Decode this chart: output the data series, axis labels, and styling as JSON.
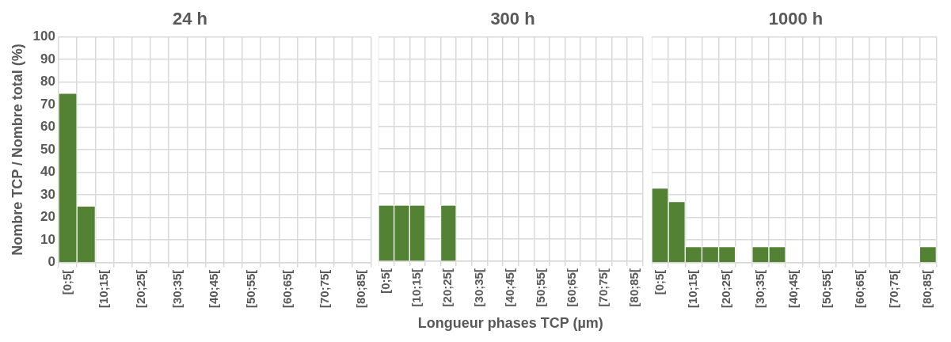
{
  "chart_data": [
    {
      "type": "bar",
      "title": "24 h",
      "ylabel": "Nombre TCP / Nombre total (%)",
      "categories": [
        "[0;5[",
        null,
        "[10;15[",
        null,
        "[20;25[",
        null,
        "[30;35[",
        null,
        "[40;45[",
        null,
        "[50;55[",
        null,
        "[60;65[",
        null,
        "[70;75[",
        null,
        "[80;85["
      ],
      "values": [
        75,
        25,
        0,
        0,
        0,
        0,
        0,
        0,
        0,
        0,
        0,
        0,
        0,
        0,
        0,
        0,
        0
      ],
      "color": "#548235",
      "ylim": [
        0,
        100
      ],
      "yticks": [
        0,
        10,
        20,
        30,
        40,
        50,
        60,
        70,
        80,
        90,
        100
      ],
      "grid": true
    },
    {
      "type": "bar",
      "title": "300 h",
      "xlabel": "Longueur phases TCP (µm)",
      "categories": [
        "[0;5[",
        null,
        "[10;15[",
        null,
        "[20;25[",
        null,
        "[30;35[",
        null,
        "[40;45[",
        null,
        "[50;55[",
        null,
        "[60;65[",
        null,
        "[70;75[",
        null,
        "[80;85["
      ],
      "values": [
        25,
        25,
        25,
        0,
        25,
        0,
        0,
        0,
        0,
        0,
        0,
        0,
        0,
        0,
        0,
        0,
        0
      ],
      "color": "#548235",
      "ylim": [
        0,
        100
      ],
      "yticks": [
        0,
        10,
        20,
        30,
        40,
        50,
        60,
        70,
        80,
        90,
        100
      ],
      "grid": true,
      "tick_labels": "x"
    },
    {
      "type": "bar",
      "title": "1000 h",
      "categories": [
        "[0;5[",
        null,
        "[10;15[",
        null,
        "[20;25[",
        null,
        "[30;35[",
        null,
        "[40;45[",
        null,
        "[50;55[",
        null,
        "[60;65[",
        null,
        "[70;75[",
        null,
        "[80;85["
      ],
      "values": [
        33,
        27,
        7,
        7,
        7,
        0,
        7,
        7,
        0,
        0,
        0,
        0,
        0,
        0,
        0,
        0,
        7
      ],
      "color": "#548235",
      "ylim": [
        0,
        100
      ],
      "yticks": [
        0,
        10,
        20,
        30,
        40,
        50,
        60,
        70,
        80,
        90,
        100
      ],
      "grid": true,
      "tick_labels": "x"
    }
  ]
}
